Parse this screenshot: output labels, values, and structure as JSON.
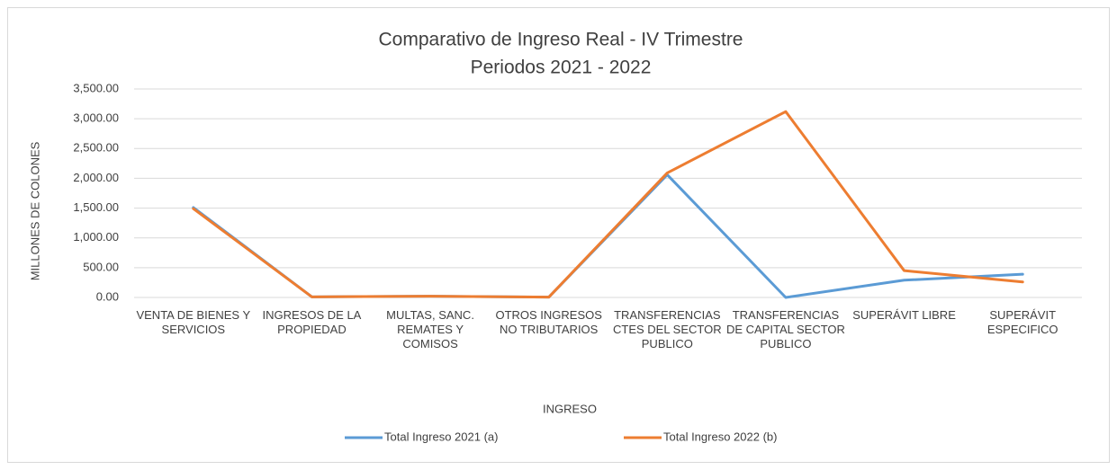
{
  "chart_data": {
    "type": "line",
    "title": "Comparativo de Ingreso Real - IV Trimestre",
    "subtitle": "Periodos 2021 - 2022",
    "x_label": "INGRESO",
    "y_label": "MILLONES DE COLONES",
    "categories": [
      "VENTA DE BIENES Y SERVICIOS",
      "INGRESOS DE LA PROPIEDAD",
      "MULTAS, SANC. REMATES Y COMISOS",
      "OTROS INGRESOS NO TRIBUTARIOS",
      "TRANSFERENCIAS CTES DEL SECTOR PUBLICO",
      "TRANSFERENCIAS DE CAPITAL SECTOR PUBLICO",
      "SUPERÁVIT LIBRE",
      "SUPERÁVIT ESPECIFICO"
    ],
    "series": [
      {
        "name": "Total Ingreso 2021 (a)",
        "color": "#5b9bd5",
        "values": [
          1510,
          10,
          20,
          5,
          2060,
          0,
          290,
          390
        ]
      },
      {
        "name": "Total Ingreso 2022 (b)",
        "color": "#ed7d31",
        "values": [
          1490,
          10,
          20,
          5,
          2090,
          3120,
          450,
          260
        ]
      }
    ],
    "ylim": [
      0,
      3500
    ],
    "yticks": [
      {
        "value": 0,
        "label": "0.00"
      },
      {
        "value": 500,
        "label": "500.00"
      },
      {
        "value": 1000,
        "label": "1,000.00"
      },
      {
        "value": 1500,
        "label": "1,500.00"
      },
      {
        "value": 2000,
        "label": "2,000.00"
      },
      {
        "value": 2500,
        "label": "2,500.00"
      },
      {
        "value": 3000,
        "label": "3,000.00"
      },
      {
        "value": 3500,
        "label": "3,500.00"
      }
    ],
    "grid": true,
    "legend": "bottom"
  }
}
